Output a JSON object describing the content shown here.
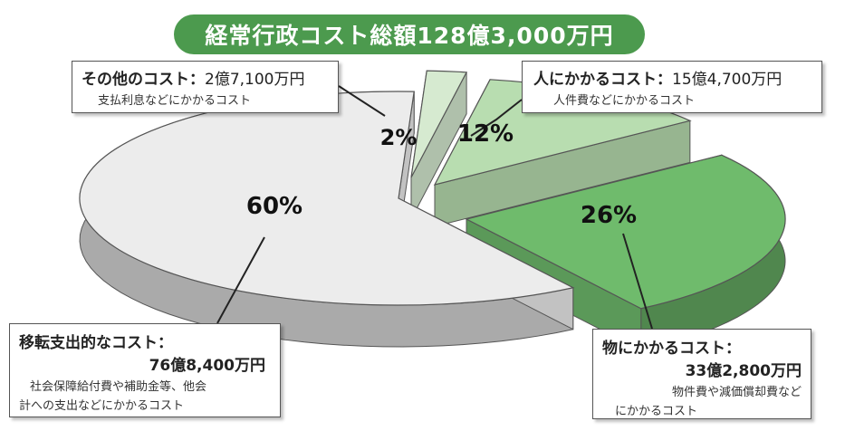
{
  "title": "経常行政コスト総額128億3,000万円",
  "chart_data": {
    "type": "pie",
    "title": "経常行政コスト総額128億3,000万円",
    "slices": [
      {
        "name": "人にかかるコスト",
        "amount": "15億4,700万円",
        "description": "人件費などにかかるコスト",
        "percent": 12,
        "value_oku": 15.47,
        "color": "#b8ddb0"
      },
      {
        "name": "物にかかるコスト",
        "amount": "33億2,800万円",
        "description": "物件費や減価償却費などにかかるコスト",
        "percent": 26,
        "value_oku": 33.28,
        "color": "#6fbb6c"
      },
      {
        "name": "移転支出的なコスト",
        "amount": "76億8,400万円",
        "description": "社会保障給付費や補助金等、他会計への支出などにかかるコスト",
        "percent": 60,
        "value_oku": 76.84,
        "color": "#ececec"
      },
      {
        "name": "その他のコスト",
        "amount": "2億7,100万円",
        "description": "支払利息などにかかるコスト",
        "percent": 2,
        "value_oku": 2.71,
        "color": "#d6ead0"
      }
    ],
    "labels": {
      "personnel": {
        "name": "人にかかるコスト：",
        "amount": "15億4,700万円",
        "desc": "人件費などにかかるコスト",
        "pct": "12%"
      },
      "goods": {
        "name": "物にかかるコスト：",
        "amount": "33億2,800万円",
        "desc1": "物件費や減価償却費など",
        "desc2": "にかかるコスト",
        "pct": "26%"
      },
      "transfer": {
        "name": "移転支出的なコスト：",
        "amount": "76億8,400万円",
        "desc1": "社会保障給付費や補助金等、他会",
        "desc2": "計への支出などにかかるコスト",
        "pct": "60%"
      },
      "other": {
        "name": "その他のコスト：",
        "amount": "2億7,100万円",
        "desc": "支払利息などにかかるコスト",
        "pct": "2%"
      }
    }
  }
}
